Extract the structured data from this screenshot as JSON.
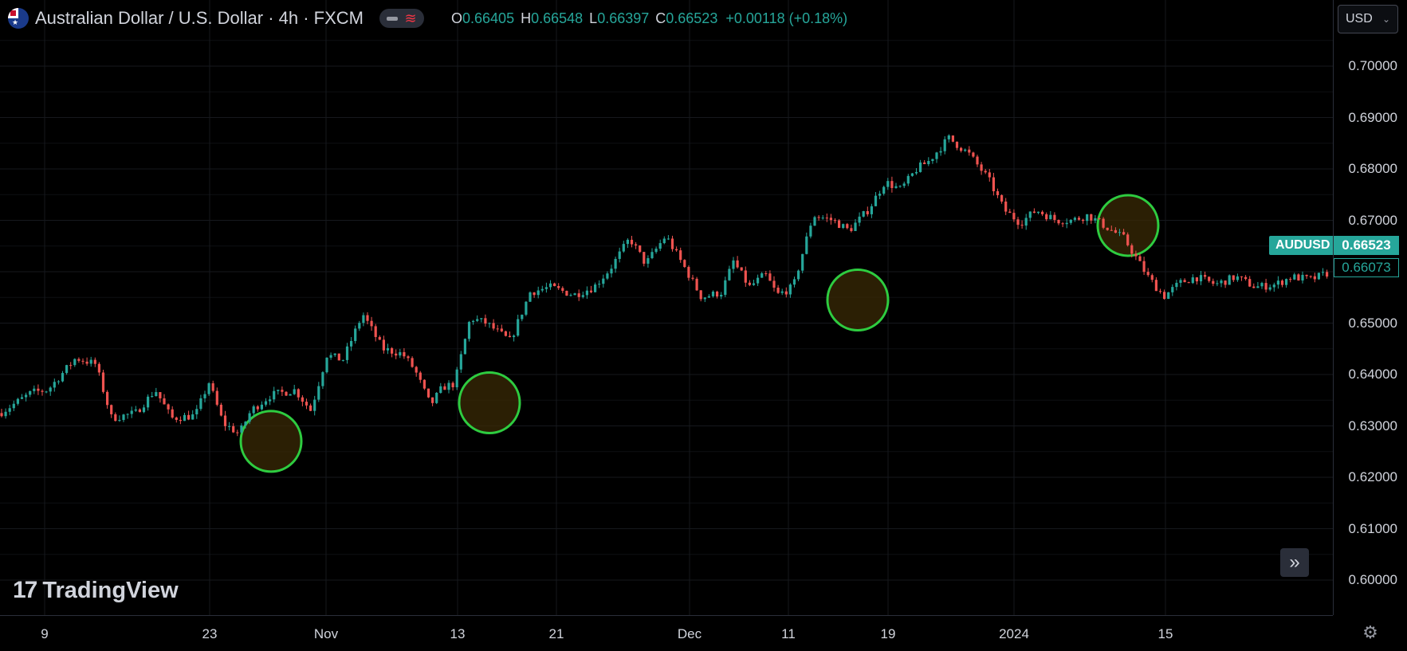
{
  "header": {
    "symbol_title": "Australian Dollar / U.S. Dollar · 4h · FXCM",
    "ohlc": [
      {
        "key": "O",
        "value": "0.66405"
      },
      {
        "key": "H",
        "value": "0.66548"
      },
      {
        "key": "L",
        "value": "0.66397"
      },
      {
        "key": "C",
        "value": "0.66523"
      }
    ],
    "change": "+0.00118 (+0.18%)",
    "currency": "USD"
  },
  "price_axis": {
    "ticks": [
      "0.70000",
      "0.69000",
      "0.68000",
      "0.67000",
      "0.66000",
      "0.65000",
      "0.64000",
      "0.63000",
      "0.62000",
      "0.61000",
      "0.60000"
    ],
    "symbol_label": "AUDUSD",
    "last_price": "0.66523",
    "secondary_price": "0.66073"
  },
  "time_axis": {
    "ticks": [
      "9",
      "23",
      "Nov",
      "13",
      "21",
      "Dec",
      "11",
      "19",
      "2024",
      "15"
    ]
  },
  "branding": {
    "logo_text": "TradingView"
  },
  "icons": {
    "flag": "australia-flag-icon",
    "settings": "gear-icon",
    "scroll": "double-chevron-right-icon"
  },
  "colors": {
    "up": "#26a69a",
    "down": "#ef5350",
    "highlight_ring": "#2ecc40",
    "highlight_fill": "#3a2a05"
  },
  "chart_data": {
    "type": "candlestick",
    "timeframe": "4h",
    "ylim": [
      0.595,
      0.707
    ],
    "ytick_values": [
      0.7,
      0.69,
      0.68,
      0.67,
      0.66,
      0.65,
      0.64,
      0.63,
      0.62,
      0.61,
      0.6
    ],
    "x_ticks": [
      "9",
      "23",
      "Nov",
      "13",
      "21",
      "Dec",
      "11",
      "19",
      "2024",
      "15"
    ],
    "close_path_x": [
      0,
      40,
      60,
      95,
      120,
      140,
      170,
      195,
      215,
      245,
      262,
      280,
      300,
      315,
      340,
      370,
      390,
      410,
      430,
      455,
      480,
      505,
      520,
      540,
      555,
      570,
      590,
      610,
      640,
      665,
      690,
      720,
      745,
      765,
      790,
      810,
      835,
      860,
      880,
      905,
      920,
      940,
      960,
      975,
      995,
      1020,
      1045,
      1065,
      1090,
      1110,
      1130,
      1150,
      1165,
      1190,
      1215,
      1240,
      1260,
      1280,
      1300,
      1325,
      1345,
      1365,
      1385,
      1410,
      1440,
      1460,
      1480,
      1500,
      1525,
      1550,
      1575,
      1600,
      1620,
      1645,
      1670
    ],
    "close_path": [
      0.6325,
      0.6365,
      0.637,
      0.6432,
      0.642,
      0.6315,
      0.6325,
      0.637,
      0.6315,
      0.632,
      0.6385,
      0.6305,
      0.6285,
      0.633,
      0.636,
      0.637,
      0.633,
      0.6438,
      0.6428,
      0.6518,
      0.645,
      0.644,
      0.641,
      0.634,
      0.6375,
      0.6382,
      0.651,
      0.65,
      0.6465,
      0.656,
      0.657,
      0.6555,
      0.657,
      0.6605,
      0.6665,
      0.6615,
      0.667,
      0.6605,
      0.655,
      0.656,
      0.662,
      0.657,
      0.6595,
      0.6555,
      0.657,
      0.671,
      0.67,
      0.668,
      0.6722,
      0.6775,
      0.676,
      0.68,
      0.6815,
      0.686,
      0.683,
      0.678,
      0.672,
      0.6695,
      0.672,
      0.67,
      0.67,
      0.671,
      0.669,
      0.6665,
      0.659,
      0.6552,
      0.6578,
      0.659,
      0.6575,
      0.659,
      0.657,
      0.6575,
      0.659,
      0.6585,
      0.66
    ],
    "highlighted_zones": [
      {
        "x_near": "23 (late Oct)",
        "price": 0.627
      },
      {
        "x_near": "13 Nov",
        "price": 0.6345
      },
      {
        "x_near": "11 Dec",
        "price": 0.6545
      },
      {
        "x_near": "early Jan 2024",
        "price": 0.669
      }
    ]
  }
}
